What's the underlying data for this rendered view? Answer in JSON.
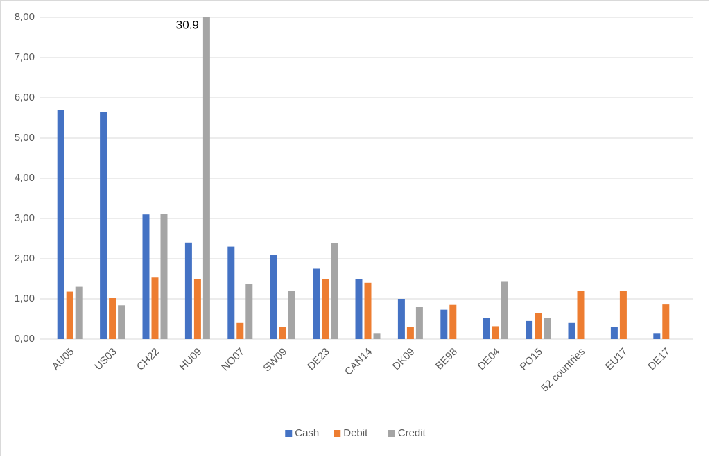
{
  "chart_data": {
    "type": "bar",
    "categories": [
      "AU05",
      "US03",
      "CH22",
      "HU09",
      "NO07",
      "SW09",
      "DE23",
      "CAN14",
      "DK09",
      "BE98",
      "DE04",
      "PO15",
      "52 countries",
      "EU17",
      "DE17"
    ],
    "series": [
      {
        "name": "Cash",
        "color": "#4472c4",
        "values": [
          5.7,
          5.65,
          3.1,
          2.4,
          2.3,
          2.1,
          1.75,
          1.5,
          1.0,
          0.73,
          0.52,
          0.45,
          0.4,
          0.3,
          0.15
        ]
      },
      {
        "name": "Debit",
        "color": "#ed7d31",
        "values": [
          1.18,
          1.02,
          1.53,
          1.5,
          0.4,
          0.3,
          1.49,
          1.4,
          0.3,
          0.85,
          0.32,
          0.65,
          1.2,
          1.2,
          0.86
        ]
      },
      {
        "name": "Credit",
        "color": "#a5a5a5",
        "values": [
          1.3,
          0.84,
          3.12,
          30.9,
          1.37,
          1.2,
          2.38,
          0.15,
          0.8,
          null,
          1.44,
          0.53,
          null,
          null,
          null
        ],
        "value_labels": [
          null,
          null,
          null,
          "30.9",
          null,
          null,
          null,
          null,
          null,
          null,
          null,
          null,
          null,
          null,
          null
        ]
      }
    ],
    "ylim": [
      0,
      8
    ],
    "yticks": [
      {
        "value": 0,
        "label": "0,00"
      },
      {
        "value": 1,
        "label": "1,00"
      },
      {
        "value": 2,
        "label": "2,00"
      },
      {
        "value": 3,
        "label": "3,00"
      },
      {
        "value": 4,
        "label": "4,00"
      },
      {
        "value": 5,
        "label": "5,00"
      },
      {
        "value": 6,
        "label": "6,00"
      },
      {
        "value": 7,
        "label": "7,00"
      },
      {
        "value": 8,
        "label": "8,00"
      }
    ],
    "grid": true,
    "legend": "bottom"
  }
}
